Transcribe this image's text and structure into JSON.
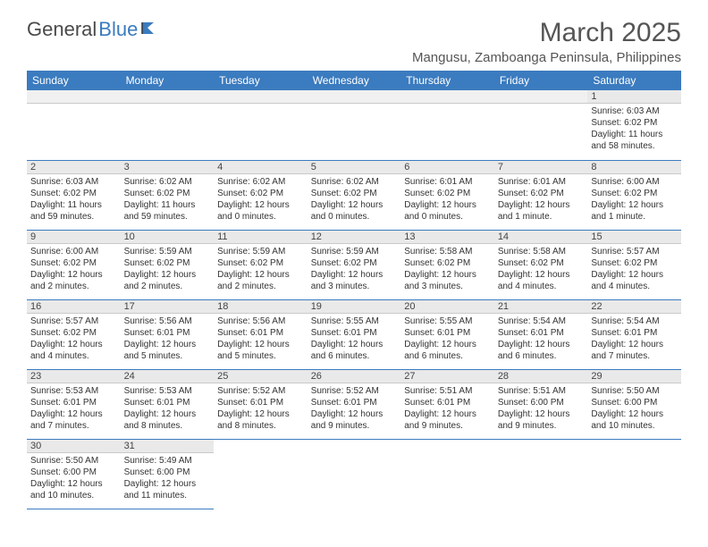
{
  "logo": {
    "text1": "General",
    "text2": "Blue"
  },
  "title": "March 2025",
  "location": "Mangusu, Zamboanga Peninsula, Philippines",
  "colors": {
    "header_bg": "#3b7bbf",
    "header_text": "#ffffff",
    "daynum_bg": "#e9e9e9",
    "border": "#3b7bbf",
    "text": "#333333"
  },
  "weekdays": [
    "Sunday",
    "Monday",
    "Tuesday",
    "Wednesday",
    "Thursday",
    "Friday",
    "Saturday"
  ],
  "weeks": [
    [
      {
        "blank": true
      },
      {
        "blank": true
      },
      {
        "blank": true
      },
      {
        "blank": true
      },
      {
        "blank": true
      },
      {
        "blank": true
      },
      {
        "num": "1",
        "sunrise": "Sunrise: 6:03 AM",
        "sunset": "Sunset: 6:02 PM",
        "daylight": "Daylight: 11 hours and 58 minutes."
      }
    ],
    [
      {
        "num": "2",
        "sunrise": "Sunrise: 6:03 AM",
        "sunset": "Sunset: 6:02 PM",
        "daylight": "Daylight: 11 hours and 59 minutes."
      },
      {
        "num": "3",
        "sunrise": "Sunrise: 6:02 AM",
        "sunset": "Sunset: 6:02 PM",
        "daylight": "Daylight: 11 hours and 59 minutes."
      },
      {
        "num": "4",
        "sunrise": "Sunrise: 6:02 AM",
        "sunset": "Sunset: 6:02 PM",
        "daylight": "Daylight: 12 hours and 0 minutes."
      },
      {
        "num": "5",
        "sunrise": "Sunrise: 6:02 AM",
        "sunset": "Sunset: 6:02 PM",
        "daylight": "Daylight: 12 hours and 0 minutes."
      },
      {
        "num": "6",
        "sunrise": "Sunrise: 6:01 AM",
        "sunset": "Sunset: 6:02 PM",
        "daylight": "Daylight: 12 hours and 0 minutes."
      },
      {
        "num": "7",
        "sunrise": "Sunrise: 6:01 AM",
        "sunset": "Sunset: 6:02 PM",
        "daylight": "Daylight: 12 hours and 1 minute."
      },
      {
        "num": "8",
        "sunrise": "Sunrise: 6:00 AM",
        "sunset": "Sunset: 6:02 PM",
        "daylight": "Daylight: 12 hours and 1 minute."
      }
    ],
    [
      {
        "num": "9",
        "sunrise": "Sunrise: 6:00 AM",
        "sunset": "Sunset: 6:02 PM",
        "daylight": "Daylight: 12 hours and 2 minutes."
      },
      {
        "num": "10",
        "sunrise": "Sunrise: 5:59 AM",
        "sunset": "Sunset: 6:02 PM",
        "daylight": "Daylight: 12 hours and 2 minutes."
      },
      {
        "num": "11",
        "sunrise": "Sunrise: 5:59 AM",
        "sunset": "Sunset: 6:02 PM",
        "daylight": "Daylight: 12 hours and 2 minutes."
      },
      {
        "num": "12",
        "sunrise": "Sunrise: 5:59 AM",
        "sunset": "Sunset: 6:02 PM",
        "daylight": "Daylight: 12 hours and 3 minutes."
      },
      {
        "num": "13",
        "sunrise": "Sunrise: 5:58 AM",
        "sunset": "Sunset: 6:02 PM",
        "daylight": "Daylight: 12 hours and 3 minutes."
      },
      {
        "num": "14",
        "sunrise": "Sunrise: 5:58 AM",
        "sunset": "Sunset: 6:02 PM",
        "daylight": "Daylight: 12 hours and 4 minutes."
      },
      {
        "num": "15",
        "sunrise": "Sunrise: 5:57 AM",
        "sunset": "Sunset: 6:02 PM",
        "daylight": "Daylight: 12 hours and 4 minutes."
      }
    ],
    [
      {
        "num": "16",
        "sunrise": "Sunrise: 5:57 AM",
        "sunset": "Sunset: 6:02 PM",
        "daylight": "Daylight: 12 hours and 4 minutes."
      },
      {
        "num": "17",
        "sunrise": "Sunrise: 5:56 AM",
        "sunset": "Sunset: 6:01 PM",
        "daylight": "Daylight: 12 hours and 5 minutes."
      },
      {
        "num": "18",
        "sunrise": "Sunrise: 5:56 AM",
        "sunset": "Sunset: 6:01 PM",
        "daylight": "Daylight: 12 hours and 5 minutes."
      },
      {
        "num": "19",
        "sunrise": "Sunrise: 5:55 AM",
        "sunset": "Sunset: 6:01 PM",
        "daylight": "Daylight: 12 hours and 6 minutes."
      },
      {
        "num": "20",
        "sunrise": "Sunrise: 5:55 AM",
        "sunset": "Sunset: 6:01 PM",
        "daylight": "Daylight: 12 hours and 6 minutes."
      },
      {
        "num": "21",
        "sunrise": "Sunrise: 5:54 AM",
        "sunset": "Sunset: 6:01 PM",
        "daylight": "Daylight: 12 hours and 6 minutes."
      },
      {
        "num": "22",
        "sunrise": "Sunrise: 5:54 AM",
        "sunset": "Sunset: 6:01 PM",
        "daylight": "Daylight: 12 hours and 7 minutes."
      }
    ],
    [
      {
        "num": "23",
        "sunrise": "Sunrise: 5:53 AM",
        "sunset": "Sunset: 6:01 PM",
        "daylight": "Daylight: 12 hours and 7 minutes."
      },
      {
        "num": "24",
        "sunrise": "Sunrise: 5:53 AM",
        "sunset": "Sunset: 6:01 PM",
        "daylight": "Daylight: 12 hours and 8 minutes."
      },
      {
        "num": "25",
        "sunrise": "Sunrise: 5:52 AM",
        "sunset": "Sunset: 6:01 PM",
        "daylight": "Daylight: 12 hours and 8 minutes."
      },
      {
        "num": "26",
        "sunrise": "Sunrise: 5:52 AM",
        "sunset": "Sunset: 6:01 PM",
        "daylight": "Daylight: 12 hours and 9 minutes."
      },
      {
        "num": "27",
        "sunrise": "Sunrise: 5:51 AM",
        "sunset": "Sunset: 6:01 PM",
        "daylight": "Daylight: 12 hours and 9 minutes."
      },
      {
        "num": "28",
        "sunrise": "Sunrise: 5:51 AM",
        "sunset": "Sunset: 6:00 PM",
        "daylight": "Daylight: 12 hours and 9 minutes."
      },
      {
        "num": "29",
        "sunrise": "Sunrise: 5:50 AM",
        "sunset": "Sunset: 6:00 PM",
        "daylight": "Daylight: 12 hours and 10 minutes."
      }
    ],
    [
      {
        "num": "30",
        "sunrise": "Sunrise: 5:50 AM",
        "sunset": "Sunset: 6:00 PM",
        "daylight": "Daylight: 12 hours and 10 minutes."
      },
      {
        "num": "31",
        "sunrise": "Sunrise: 5:49 AM",
        "sunset": "Sunset: 6:00 PM",
        "daylight": "Daylight: 12 hours and 11 minutes."
      },
      {
        "blank": true,
        "noborder": true
      },
      {
        "blank": true,
        "noborder": true
      },
      {
        "blank": true,
        "noborder": true
      },
      {
        "blank": true,
        "noborder": true
      },
      {
        "blank": true,
        "noborder": true
      }
    ]
  ]
}
